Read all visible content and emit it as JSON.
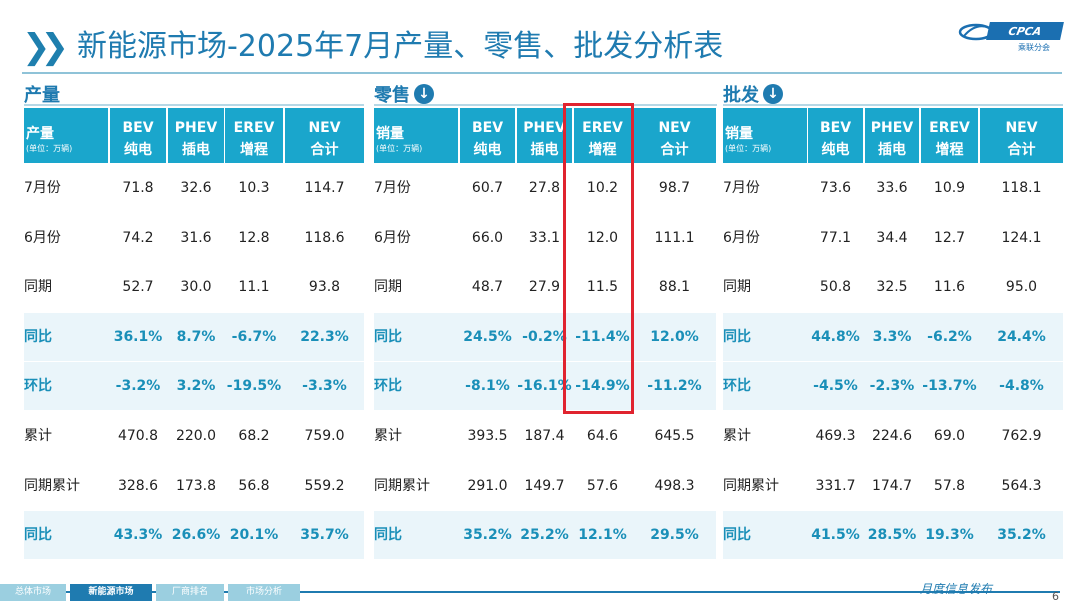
{
  "title": "新能源市场-2025年7月产量、零售、批发分析表",
  "logo": {
    "brand": "CPCA",
    "sub": "乘联分会"
  },
  "sections": [
    {
      "name": "产量",
      "has_icon": false
    },
    {
      "name": "零售",
      "has_icon": true
    },
    {
      "name": "批发",
      "has_icon": true
    }
  ],
  "tables": [
    {
      "header_first": {
        "line1": "产量",
        "line2": "(单位：万辆)"
      },
      "columns": [
        {
          "line1": "BEV",
          "line2": "纯电"
        },
        {
          "line1": "PHEV",
          "line2": "插电"
        },
        {
          "line1": "EREV",
          "line2": "增程"
        },
        {
          "line1": "NEV",
          "line2": "合计"
        }
      ],
      "rows": [
        {
          "label": "7月份",
          "values": [
            "71.8",
            "32.6",
            "10.3",
            "114.7"
          ],
          "highlight": false
        },
        {
          "label": "6月份",
          "values": [
            "74.2",
            "31.6",
            "12.8",
            "118.6"
          ],
          "highlight": false
        },
        {
          "label": "同期",
          "values": [
            "52.7",
            "30.0",
            "11.1",
            "93.8"
          ],
          "highlight": false
        },
        {
          "label": "同比",
          "values": [
            "36.1%",
            "8.7%",
            "-6.7%",
            "22.3%"
          ],
          "highlight": true
        },
        {
          "label": "环比",
          "values": [
            "-3.2%",
            "3.2%",
            "-19.5%",
            "-3.3%"
          ],
          "highlight": true
        },
        {
          "label": "累计",
          "values": [
            "470.8",
            "220.0",
            "68.2",
            "759.0"
          ],
          "highlight": false
        },
        {
          "label": "同期累计",
          "values": [
            "328.6",
            "173.8",
            "56.8",
            "559.2"
          ],
          "highlight": false
        },
        {
          "label": "同比",
          "values": [
            "43.3%",
            "26.6%",
            "20.1%",
            "35.7%"
          ],
          "highlight": true
        }
      ]
    },
    {
      "header_first": {
        "line1": "销量",
        "line2": "(单位：万辆)"
      },
      "columns": [
        {
          "line1": "BEV",
          "line2": "纯电"
        },
        {
          "line1": "PHEV",
          "line2": "插电"
        },
        {
          "line1": "EREV",
          "line2": "增程"
        },
        {
          "line1": "NEV",
          "line2": "合计"
        }
      ],
      "rows": [
        {
          "label": "7月份",
          "values": [
            "60.7",
            "27.8",
            "10.2",
            "98.7"
          ],
          "highlight": false
        },
        {
          "label": "6月份",
          "values": [
            "66.0",
            "33.1",
            "12.0",
            "111.1"
          ],
          "highlight": false
        },
        {
          "label": "同期",
          "values": [
            "48.7",
            "27.9",
            "11.5",
            "88.1"
          ],
          "highlight": false
        },
        {
          "label": "同比",
          "values": [
            "24.5%",
            "-0.2%",
            "-11.4%",
            "12.0%"
          ],
          "highlight": true
        },
        {
          "label": "环比",
          "values": [
            "-8.1%",
            "-16.1%",
            "-14.9%",
            "-11.2%"
          ],
          "highlight": true
        },
        {
          "label": "累计",
          "values": [
            "393.5",
            "187.4",
            "64.6",
            "645.5"
          ],
          "highlight": false
        },
        {
          "label": "同期累计",
          "values": [
            "291.0",
            "149.7",
            "57.6",
            "498.3"
          ],
          "highlight": false
        },
        {
          "label": "同比",
          "values": [
            "35.2%",
            "25.2%",
            "12.1%",
            "29.5%"
          ],
          "highlight": true
        }
      ]
    },
    {
      "header_first": {
        "line1": "销量",
        "line2": "(单位：万辆)"
      },
      "columns": [
        {
          "line1": "BEV",
          "line2": "纯电"
        },
        {
          "line1": "PHEV",
          "line2": "插电"
        },
        {
          "line1": "EREV",
          "line2": "增程"
        },
        {
          "line1": "NEV",
          "line2": "合计"
        }
      ],
      "rows": [
        {
          "label": "7月份",
          "values": [
            "73.6",
            "33.6",
            "10.9",
            "118.1"
          ],
          "highlight": false
        },
        {
          "label": "6月份",
          "values": [
            "77.1",
            "34.4",
            "12.7",
            "124.1"
          ],
          "highlight": false
        },
        {
          "label": "同期",
          "values": [
            "50.8",
            "32.5",
            "11.6",
            "95.0"
          ],
          "highlight": false
        },
        {
          "label": "同比",
          "values": [
            "44.8%",
            "3.3%",
            "-6.2%",
            "24.4%"
          ],
          "highlight": true
        },
        {
          "label": "环比",
          "values": [
            "-4.5%",
            "-2.3%",
            "-13.7%",
            "-4.8%"
          ],
          "highlight": true
        },
        {
          "label": "累计",
          "values": [
            "469.3",
            "224.6",
            "69.0",
            "762.9"
          ],
          "highlight": false
        },
        {
          "label": "同期累计",
          "values": [
            "331.7",
            "174.7",
            "57.8",
            "564.3"
          ],
          "highlight": false
        },
        {
          "label": "同比",
          "values": [
            "41.5%",
            "28.5%",
            "19.3%",
            "35.2%"
          ],
          "highlight": true
        }
      ]
    }
  ],
  "footer": {
    "tabs": [
      {
        "label": "总体市场",
        "active": false
      },
      {
        "label": "新能源市场",
        "active": true
      },
      {
        "label": "厂商排名",
        "active": false
      },
      {
        "label": "市场分析",
        "active": false
      }
    ],
    "monthly": "月度信息发布",
    "page_number": "6"
  },
  "colors": {
    "header": "#1aa6cc",
    "highlight_row": "#eaf5fa",
    "title": "#1f7bb0",
    "accent_box": "#e0232f"
  }
}
